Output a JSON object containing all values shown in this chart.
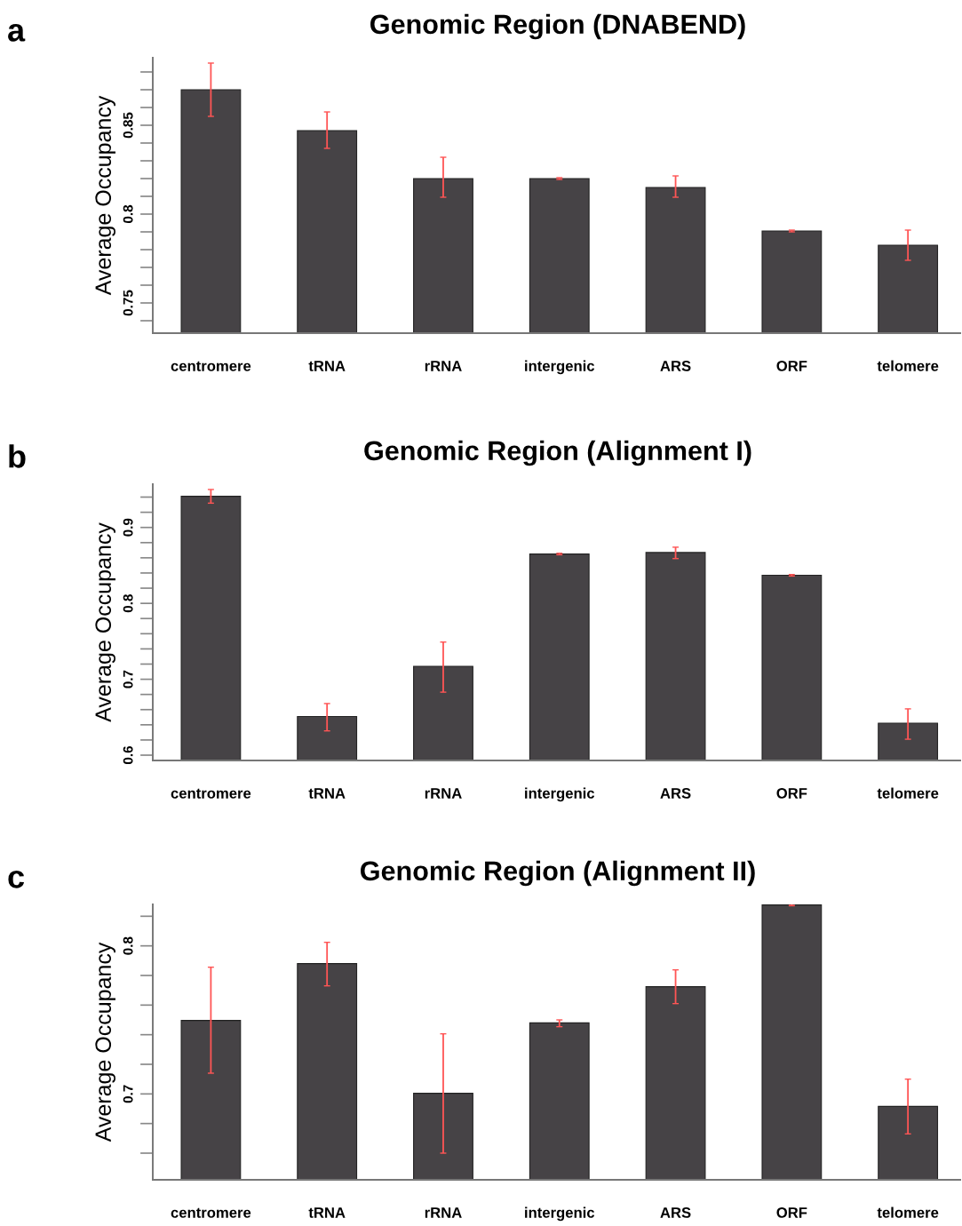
{
  "chart_data": [
    {
      "type": "bar",
      "title": "Genomic Region (DNABEND)",
      "ylabel": "Average Occupancy",
      "annotations": [
        "a"
      ],
      "categories": [
        "centromere",
        "tRNA",
        "rRNA",
        "intergenic",
        "ARS",
        "ORF",
        "telomere"
      ],
      "values": [
        0.87,
        0.847,
        0.82,
        0.82,
        0.815,
        0.7905,
        0.7825
      ],
      "color": "#464346",
      "errors": [
        [
          0.855,
          0.885
        ],
        [
          0.837,
          0.8575
        ],
        [
          0.8095,
          0.832
        ],
        0.0005,
        [
          0.8095,
          0.8215
        ],
        0.0005,
        [
          0.774,
          0.791
        ]
      ],
      "ylim": [
        0.733,
        0.888
      ],
      "yticks": [
        {
          "value": 0.74,
          "label": null
        },
        {
          "value": 0.75,
          "label": "0.75"
        },
        {
          "value": 0.76,
          "label": null
        },
        {
          "value": 0.77,
          "label": null
        },
        {
          "value": 0.78,
          "label": null
        },
        {
          "value": 0.79,
          "label": null
        },
        {
          "value": 0.8,
          "label": "0.8"
        },
        {
          "value": 0.81,
          "label": null
        },
        {
          "value": 0.82,
          "label": null
        },
        {
          "value": 0.83,
          "label": null
        },
        {
          "value": 0.84,
          "label": null
        },
        {
          "value": 0.85,
          "label": "0.85"
        },
        {
          "value": 0.86,
          "label": null
        },
        {
          "value": 0.87,
          "label": null
        },
        {
          "value": 0.88,
          "label": null
        }
      ],
      "grid": false,
      "legend": false
    },
    {
      "type": "bar",
      "title": "Genomic Region (Alignment I)",
      "ylabel": "Average Occupancy",
      "annotations": [
        "b"
      ],
      "categories": [
        "centromere",
        "tRNA",
        "rRNA",
        "intergenic",
        "ARS",
        "ORF",
        "telomere"
      ],
      "values": [
        0.941,
        0.651,
        0.717,
        0.865,
        0.867,
        0.837,
        0.642
      ],
      "color": "#464346",
      "errors": [
        [
          0.932,
          0.95
        ],
        [
          0.632,
          0.668
        ],
        [
          0.683,
          0.749
        ],
        0.001,
        [
          0.859,
          0.874
        ],
        0.001,
        [
          0.621,
          0.661
        ]
      ],
      "ylim": [
        0.593,
        0.957
      ],
      "yticks": [
        {
          "value": 0.6,
          "label": "0.6"
        },
        {
          "value": 0.62,
          "label": null
        },
        {
          "value": 0.64,
          "label": null
        },
        {
          "value": 0.66,
          "label": null
        },
        {
          "value": 0.68,
          "label": null
        },
        {
          "value": 0.7,
          "label": "0.7"
        },
        {
          "value": 0.72,
          "label": null
        },
        {
          "value": 0.74,
          "label": null
        },
        {
          "value": 0.76,
          "label": null
        },
        {
          "value": 0.78,
          "label": null
        },
        {
          "value": 0.8,
          "label": "0.8"
        },
        {
          "value": 0.82,
          "label": null
        },
        {
          "value": 0.84,
          "label": null
        },
        {
          "value": 0.86,
          "label": null
        },
        {
          "value": 0.88,
          "label": null
        },
        {
          "value": 0.9,
          "label": "0.9"
        },
        {
          "value": 0.92,
          "label": null
        },
        {
          "value": 0.94,
          "label": null
        }
      ],
      "grid": false,
      "legend": false
    },
    {
      "type": "bar",
      "title": "Genomic Region (Alignment II)",
      "ylabel": "Average Occupancy",
      "annotations": [
        "c"
      ],
      "categories": [
        "centromere",
        "tRNA",
        "rRNA",
        "intergenic",
        "ARS",
        "ORF",
        "telomere"
      ],
      "values": [
        0.7496,
        0.788,
        0.7004,
        0.748,
        0.7724,
        0.8276,
        0.6916
      ],
      "color": "#464346",
      "errors": [
        [
          0.714,
          0.7856
        ],
        [
          0.773,
          0.8024
        ],
        [
          0.66,
          0.7406
        ],
        [
          0.7454,
          0.75
        ],
        [
          0.761,
          0.7838
        ],
        0.0005,
        [
          0.673,
          0.71
        ]
      ],
      "ylim": [
        0.642,
        0.828
      ],
      "yticks": [
        {
          "value": 0.66,
          "label": null
        },
        {
          "value": 0.68,
          "label": null
        },
        {
          "value": 0.7,
          "label": "0.7"
        },
        {
          "value": 0.72,
          "label": null
        },
        {
          "value": 0.74,
          "label": null
        },
        {
          "value": 0.76,
          "label": null
        },
        {
          "value": 0.78,
          "label": null
        },
        {
          "value": 0.8,
          "label": "0.8"
        },
        {
          "value": 0.82,
          "label": null
        }
      ],
      "grid": false,
      "legend": false
    }
  ]
}
